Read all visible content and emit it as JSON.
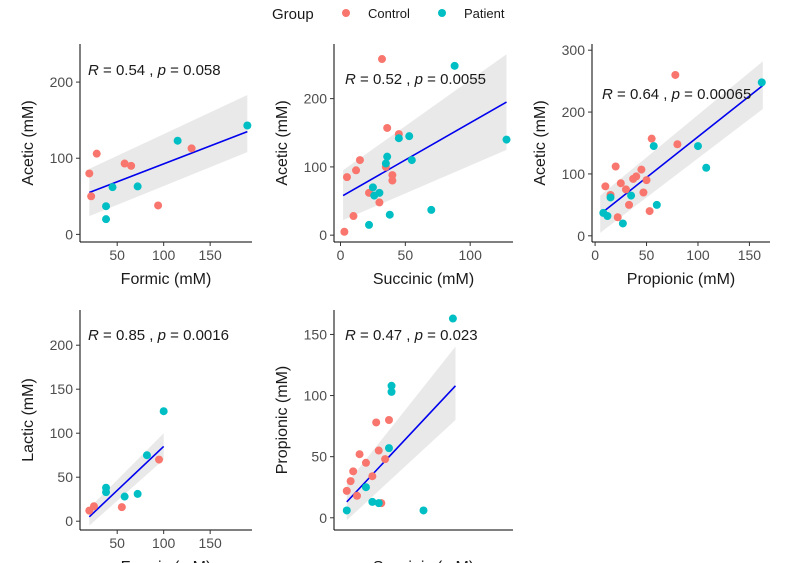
{
  "legend": {
    "title": "Group",
    "items": [
      {
        "label": "Control",
        "color": "#F8766D"
      },
      {
        "label": "Patient",
        "color": "#00BFC4"
      }
    ]
  },
  "fit_color": "#0000EE",
  "band_color": "#D3D3D3",
  "chart_data": [
    {
      "type": "scatter",
      "xlabel": "Formic (mM)",
      "ylabel": "Acetic (mM)",
      "xlim": [
        10,
        195
      ],
      "ylim": [
        -10,
        250
      ],
      "xticks": [
        50,
        100,
        150
      ],
      "yticks": [
        0,
        100,
        200
      ],
      "annotation": {
        "r": "0.54",
        "p": "0.058"
      },
      "fit": {
        "x": [
          20,
          190
        ],
        "y": [
          55,
          135
        ],
        "band_lower": [
          24,
          108
        ],
        "band_upper": [
          86,
          183
        ]
      },
      "points": [
        {
          "x": 20,
          "y": 80,
          "group": "Control"
        },
        {
          "x": 22,
          "y": 50,
          "group": "Control"
        },
        {
          "x": 28,
          "y": 106,
          "group": "Control"
        },
        {
          "x": 58,
          "y": 93,
          "group": "Control"
        },
        {
          "x": 65,
          "y": 90,
          "group": "Control"
        },
        {
          "x": 94,
          "y": 38,
          "group": "Control"
        },
        {
          "x": 130,
          "y": 113,
          "group": "Control"
        },
        {
          "x": 38,
          "y": 37,
          "group": "Patient"
        },
        {
          "x": 38,
          "y": 20,
          "group": "Patient"
        },
        {
          "x": 45,
          "y": 62,
          "group": "Patient"
        },
        {
          "x": 72,
          "y": 63,
          "group": "Patient"
        },
        {
          "x": 115,
          "y": 123,
          "group": "Patient"
        },
        {
          "x": 190,
          "y": 143,
          "group": "Patient"
        }
      ]
    },
    {
      "type": "scatter",
      "xlabel": "Succinic (mM)",
      "ylabel": "Acetic (mM)",
      "xlim": [
        -5,
        133
      ],
      "ylim": [
        -10,
        280
      ],
      "xticks": [
        0,
        50,
        100
      ],
      "yticks": [
        0,
        100,
        200
      ],
      "annotation": {
        "r": "0.52",
        "p": "0.0055"
      },
      "fit": {
        "x": [
          2,
          128
        ],
        "y": [
          58,
          195
        ],
        "band_lower": [
          22,
          125
        ],
        "band_upper": [
          95,
          265
        ]
      },
      "points": [
        {
          "x": 3,
          "y": 5,
          "group": "Control"
        },
        {
          "x": 5,
          "y": 85,
          "group": "Control"
        },
        {
          "x": 10,
          "y": 28,
          "group": "Control"
        },
        {
          "x": 12,
          "y": 95,
          "group": "Control"
        },
        {
          "x": 15,
          "y": 110,
          "group": "Control"
        },
        {
          "x": 22,
          "y": 62,
          "group": "Control"
        },
        {
          "x": 30,
          "y": 48,
          "group": "Control"
        },
        {
          "x": 32,
          "y": 258,
          "group": "Control"
        },
        {
          "x": 36,
          "y": 157,
          "group": "Control"
        },
        {
          "x": 40,
          "y": 88,
          "group": "Control"
        },
        {
          "x": 40,
          "y": 80,
          "group": "Control"
        },
        {
          "x": 45,
          "y": 148,
          "group": "Control"
        },
        {
          "x": 35,
          "y": 100,
          "group": "Control"
        },
        {
          "x": 22,
          "y": 15,
          "group": "Patient"
        },
        {
          "x": 25,
          "y": 70,
          "group": "Patient"
        },
        {
          "x": 26,
          "y": 58,
          "group": "Patient"
        },
        {
          "x": 30,
          "y": 62,
          "group": "Patient"
        },
        {
          "x": 35,
          "y": 105,
          "group": "Patient"
        },
        {
          "x": 36,
          "y": 115,
          "group": "Patient"
        },
        {
          "x": 38,
          "y": 30,
          "group": "Patient"
        },
        {
          "x": 45,
          "y": 142,
          "group": "Patient"
        },
        {
          "x": 53,
          "y": 145,
          "group": "Patient"
        },
        {
          "x": 55,
          "y": 110,
          "group": "Patient"
        },
        {
          "x": 70,
          "y": 37,
          "group": "Patient"
        },
        {
          "x": 88,
          "y": 248,
          "group": "Patient"
        },
        {
          "x": 128,
          "y": 140,
          "group": "Patient"
        }
      ]
    },
    {
      "type": "scatter",
      "xlabel": "Propionic (mM)",
      "ylabel": "Acetic (mM)",
      "xlim": [
        -3,
        170
      ],
      "ylim": [
        -10,
        310
      ],
      "xticks": [
        0,
        50,
        100,
        150
      ],
      "yticks": [
        0,
        100,
        200,
        300
      ],
      "annotation": {
        "r": "0.64",
        "p": "0.00065"
      },
      "fit": {
        "x": [
          5,
          163
        ],
        "y": [
          35,
          243
        ],
        "band_lower": [
          5,
          205
        ],
        "band_upper": [
          65,
          282
        ]
      },
      "points": [
        {
          "x": 10,
          "y": 80,
          "group": "Control"
        },
        {
          "x": 15,
          "y": 66,
          "group": "Control"
        },
        {
          "x": 20,
          "y": 112,
          "group": "Control"
        },
        {
          "x": 22,
          "y": 30,
          "group": "Control"
        },
        {
          "x": 25,
          "y": 85,
          "group": "Control"
        },
        {
          "x": 30,
          "y": 75,
          "group": "Control"
        },
        {
          "x": 33,
          "y": 50,
          "group": "Control"
        },
        {
          "x": 37,
          "y": 92,
          "group": "Control"
        },
        {
          "x": 40,
          "y": 96,
          "group": "Control"
        },
        {
          "x": 45,
          "y": 107,
          "group": "Control"
        },
        {
          "x": 47,
          "y": 70,
          "group": "Control"
        },
        {
          "x": 50,
          "y": 90,
          "group": "Control"
        },
        {
          "x": 53,
          "y": 40,
          "group": "Control"
        },
        {
          "x": 55,
          "y": 157,
          "group": "Control"
        },
        {
          "x": 78,
          "y": 260,
          "group": "Control"
        },
        {
          "x": 80,
          "y": 148,
          "group": "Control"
        },
        {
          "x": 8,
          "y": 37,
          "group": "Patient"
        },
        {
          "x": 12,
          "y": 32,
          "group": "Patient"
        },
        {
          "x": 15,
          "y": 62,
          "group": "Patient"
        },
        {
          "x": 27,
          "y": 20,
          "group": "Patient"
        },
        {
          "x": 35,
          "y": 65,
          "group": "Patient"
        },
        {
          "x": 57,
          "y": 145,
          "group": "Patient"
        },
        {
          "x": 60,
          "y": 50,
          "group": "Patient"
        },
        {
          "x": 100,
          "y": 145,
          "group": "Patient"
        },
        {
          "x": 108,
          "y": 110,
          "group": "Patient"
        },
        {
          "x": 162,
          "y": 248,
          "group": "Patient"
        }
      ]
    },
    {
      "type": "scatter",
      "xlabel": "Formic (mM)",
      "ylabel": "Lactic (mM)",
      "xlim": [
        10,
        195
      ],
      "ylim": [
        -10,
        240
      ],
      "xticks": [
        50,
        100,
        150
      ],
      "yticks": [
        0,
        50,
        100,
        150,
        200
      ],
      "annotation": {
        "r": "0.85",
        "p": "0.0016"
      },
      "fit": {
        "x": [
          20,
          100
        ],
        "y": [
          5,
          85
        ],
        "band_lower": [
          -5,
          70
        ],
        "band_upper": [
          15,
          100
        ]
      },
      "points": [
        {
          "x": 20,
          "y": 12,
          "group": "Control"
        },
        {
          "x": 25,
          "y": 17,
          "group": "Control"
        },
        {
          "x": 55,
          "y": 16,
          "group": "Control"
        },
        {
          "x": 95,
          "y": 70,
          "group": "Control"
        },
        {
          "x": 38,
          "y": 38,
          "group": "Patient"
        },
        {
          "x": 38,
          "y": 33,
          "group": "Patient"
        },
        {
          "x": 58,
          "y": 28,
          "group": "Patient"
        },
        {
          "x": 72,
          "y": 31,
          "group": "Patient"
        },
        {
          "x": 82,
          "y": 75,
          "group": "Patient"
        },
        {
          "x": 100,
          "y": 125,
          "group": "Patient"
        }
      ]
    },
    {
      "type": "scatter",
      "xlabel": "Succinic (mM)",
      "ylabel": "Propionic (mM)",
      "xlim": [
        -5,
        135
      ],
      "ylim": [
        -10,
        170
      ],
      "xticks": [],
      "yticks": [
        0,
        50,
        100,
        150
      ],
      "annotation": {
        "r": "0.47",
        "p": "0.023"
      },
      "fit": {
        "x": [
          5,
          90
        ],
        "y": [
          13,
          108
        ],
        "band_lower": [
          -2,
          80
        ],
        "band_upper": [
          28,
          140
        ]
      },
      "points": [
        {
          "x": 5,
          "y": 22,
          "group": "Control"
        },
        {
          "x": 8,
          "y": 30,
          "group": "Control"
        },
        {
          "x": 10,
          "y": 38,
          "group": "Control"
        },
        {
          "x": 13,
          "y": 18,
          "group": "Control"
        },
        {
          "x": 15,
          "y": 52,
          "group": "Control"
        },
        {
          "x": 20,
          "y": 45,
          "group": "Control"
        },
        {
          "x": 25,
          "y": 34,
          "group": "Control"
        },
        {
          "x": 28,
          "y": 78,
          "group": "Control"
        },
        {
          "x": 30,
          "y": 55,
          "group": "Control"
        },
        {
          "x": 32,
          "y": 12,
          "group": "Control"
        },
        {
          "x": 35,
          "y": 48,
          "group": "Control"
        },
        {
          "x": 38,
          "y": 80,
          "group": "Control"
        },
        {
          "x": 5,
          "y": 6,
          "group": "Patient"
        },
        {
          "x": 20,
          "y": 25,
          "group": "Patient"
        },
        {
          "x": 25,
          "y": 13,
          "group": "Patient"
        },
        {
          "x": 30,
          "y": 12,
          "group": "Patient"
        },
        {
          "x": 38,
          "y": 57,
          "group": "Patient"
        },
        {
          "x": 40,
          "y": 103,
          "group": "Patient"
        },
        {
          "x": 40,
          "y": 108,
          "group": "Patient"
        },
        {
          "x": 65,
          "y": 6,
          "group": "Patient"
        },
        {
          "x": 88,
          "y": 163,
          "group": "Patient"
        }
      ]
    }
  ]
}
